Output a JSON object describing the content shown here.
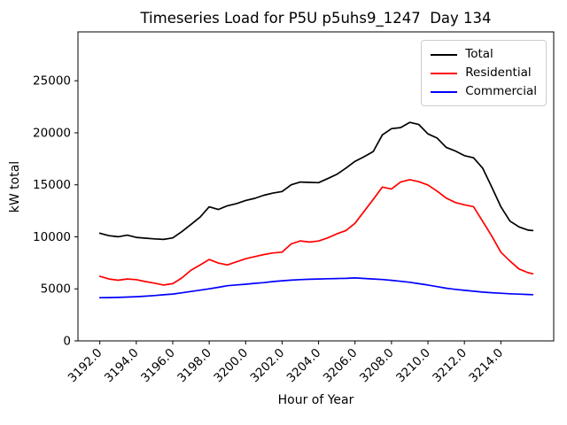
{
  "chart_data": {
    "type": "line",
    "title": "Timeseries Load for P5U p5uhs9_1247  Day 134",
    "xlabel": "Hour of Year",
    "ylabel": "kW total",
    "grid": false,
    "xlim": [
      3190.8,
      3216.9
    ],
    "ylim": [
      0,
      29700
    ],
    "x_ticks": [
      3192,
      3194,
      3196,
      3198,
      3200,
      3202,
      3204,
      3206,
      3208,
      3210,
      3212,
      3214
    ],
    "x_tick_labels": [
      "3192.0",
      "3194.0",
      "3196.0",
      "3198.0",
      "3200.0",
      "3202.0",
      "3204.0",
      "3206.0",
      "3208.0",
      "3210.0",
      "3212.0",
      "3214.0"
    ],
    "y_ticks": [
      0,
      5000,
      10000,
      15000,
      20000,
      25000
    ],
    "y_tick_labels": [
      "0",
      "5000",
      "10000",
      "15000",
      "20000",
      "25000"
    ],
    "x": [
      3192.0,
      3192.5,
      3193.0,
      3193.5,
      3194.0,
      3194.5,
      3195.0,
      3195.5,
      3196.0,
      3196.5,
      3197.0,
      3197.5,
      3198.0,
      3198.5,
      3199.0,
      3199.5,
      3200.0,
      3200.5,
      3201.0,
      3201.5,
      3202.0,
      3202.5,
      3203.0,
      3203.5,
      3204.0,
      3204.5,
      3205.0,
      3205.5,
      3206.0,
      3206.5,
      3207.0,
      3207.5,
      3208.0,
      3208.5,
      3209.0,
      3209.5,
      3210.0,
      3210.5,
      3211.0,
      3211.5,
      3212.0,
      3212.5,
      3213.0,
      3213.5,
      3214.0,
      3214.5,
      3215.0,
      3215.5,
      3215.75
    ],
    "series": [
      {
        "name": "Total",
        "color": "#000000",
        "values": [
          10350,
          10110,
          10010,
          10160,
          9950,
          9870,
          9800,
          9750,
          9900,
          10500,
          11200,
          11900,
          12880,
          12630,
          12990,
          13200,
          13500,
          13700,
          14000,
          14200,
          14360,
          15000,
          15270,
          15230,
          15210,
          15600,
          16010,
          16600,
          17260,
          17700,
          18200,
          19800,
          20400,
          20500,
          21000,
          20800,
          19900,
          19500,
          18600,
          18250,
          17800,
          17600,
          16600,
          14800,
          12900,
          11510,
          10950,
          10650,
          10600
        ]
      },
      {
        "name": "Residential",
        "color": "#ff0000",
        "values": [
          6200,
          5950,
          5830,
          5950,
          5890,
          5700,
          5550,
          5370,
          5500,
          6050,
          6800,
          7300,
          7820,
          7480,
          7300,
          7600,
          7900,
          8100,
          8300,
          8450,
          8530,
          9320,
          9610,
          9500,
          9600,
          9900,
          10290,
          10600,
          11300,
          12450,
          13600,
          14780,
          14600,
          15270,
          15500,
          15300,
          14990,
          14400,
          13730,
          13300,
          13080,
          12900,
          11500,
          10090,
          8530,
          7680,
          6910,
          6550,
          6450
        ]
      },
      {
        "name": "Commercial",
        "color": "#0000ff",
        "values": [
          4150,
          4160,
          4180,
          4210,
          4250,
          4300,
          4360,
          4430,
          4500,
          4620,
          4750,
          4880,
          5000,
          5150,
          5300,
          5380,
          5450,
          5530,
          5600,
          5700,
          5780,
          5840,
          5890,
          5920,
          5950,
          5970,
          5990,
          6010,
          6050,
          6000,
          5950,
          5900,
          5820,
          5730,
          5630,
          5500,
          5370,
          5220,
          5060,
          4950,
          4860,
          4770,
          4690,
          4630,
          4580,
          4530,
          4490,
          4460,
          4440
        ]
      }
    ],
    "legend": {
      "position": "upper right",
      "border_color": "#cccccc",
      "items": [
        {
          "label": "Total",
          "color": "#000000"
        },
        {
          "label": "Residential",
          "color": "#ff0000"
        },
        {
          "label": "Commercial",
          "color": "#0000ff"
        }
      ]
    }
  }
}
